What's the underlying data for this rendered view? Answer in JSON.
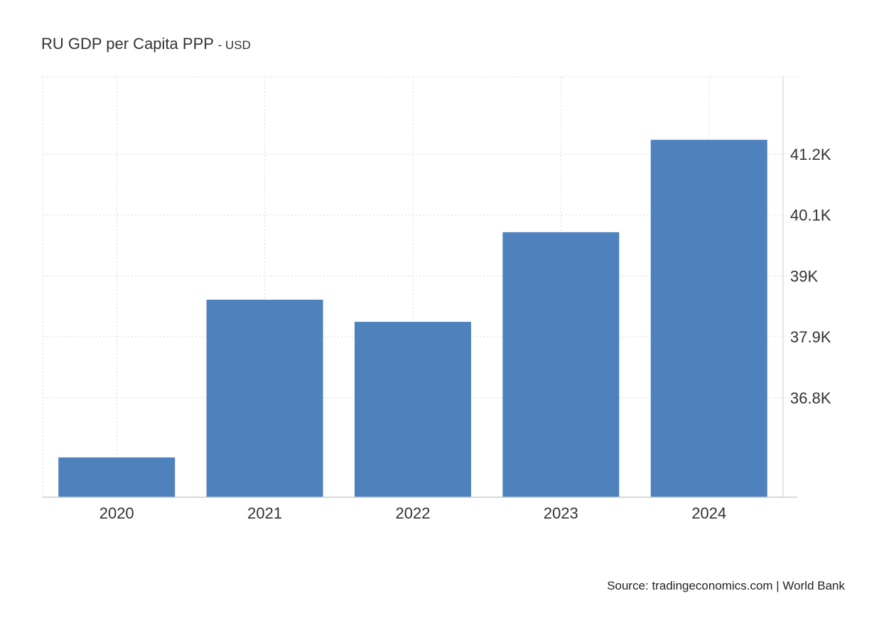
{
  "title": "RU GDP per Capita PPP",
  "unit_label": "- USD",
  "source": "Source: tradingeconomics.com | World Bank",
  "colors": {
    "bar": "#4f81bc",
    "grid": "#d9d9d9",
    "axis": "#cccccc",
    "text": "#333333"
  },
  "chart_data": {
    "type": "bar",
    "categories": [
      "2020",
      "2021",
      "2022",
      "2023",
      "2024"
    ],
    "values": [
      35.72,
      38.57,
      38.17,
      39.79,
      41.46
    ],
    "value_unit": "K USD",
    "ylim": [
      35.0,
      42.6
    ],
    "yticks": [
      36.8,
      37.9,
      39.0,
      40.1,
      41.2
    ],
    "ytick_labels": [
      "36.8K",
      "37.9K",
      "39K",
      "40.1K",
      "41.2K"
    ],
    "yaxis_position": "right",
    "grid": true,
    "legend": "none"
  }
}
